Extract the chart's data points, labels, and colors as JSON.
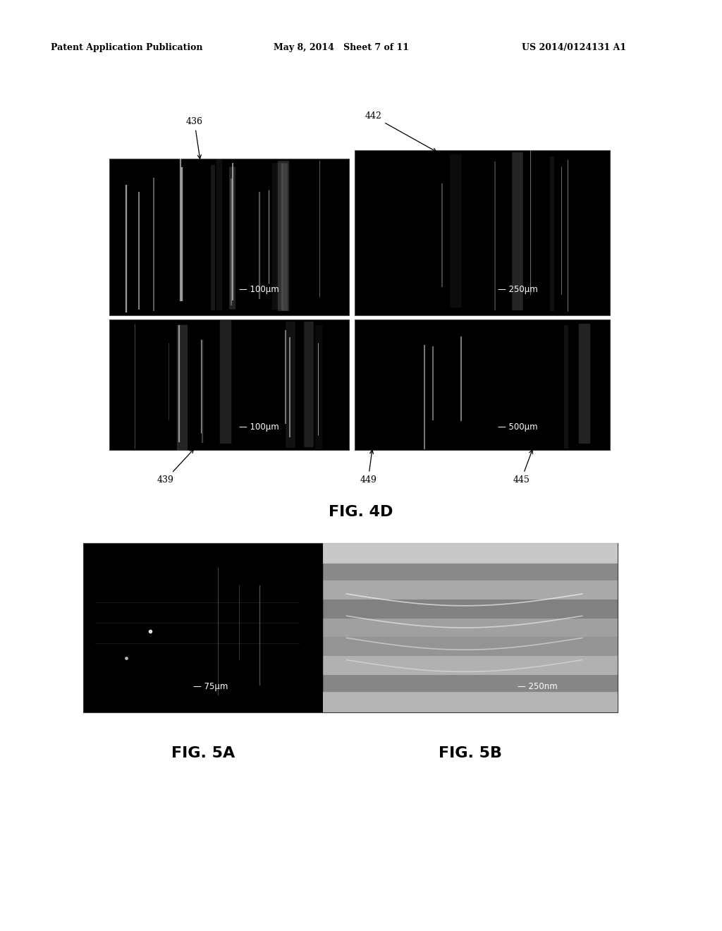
{
  "bg_color": "#ffffff",
  "header_left": "Patent Application Publication",
  "header_mid": "May 8, 2014   Sheet 7 of 11",
  "header_right": "US 2014/0124131 A1",
  "fig4d_label": "FIG. 4D",
  "fig5a_label": "FIG. 5A",
  "fig5b_label": "FIG. 5B",
  "scale_bar_tl": "— 100μm",
  "scale_bar_tr": "— 250μm",
  "scale_bar_bl": "— 100μm",
  "scale_bar_br": "— 500μm",
  "scale_bar_5a": "— 75μm",
  "scale_bar_5b": "— 250nm",
  "label_436": "436",
  "label_442": "442",
  "label_439": "439",
  "label_449": "449",
  "label_445": "445"
}
